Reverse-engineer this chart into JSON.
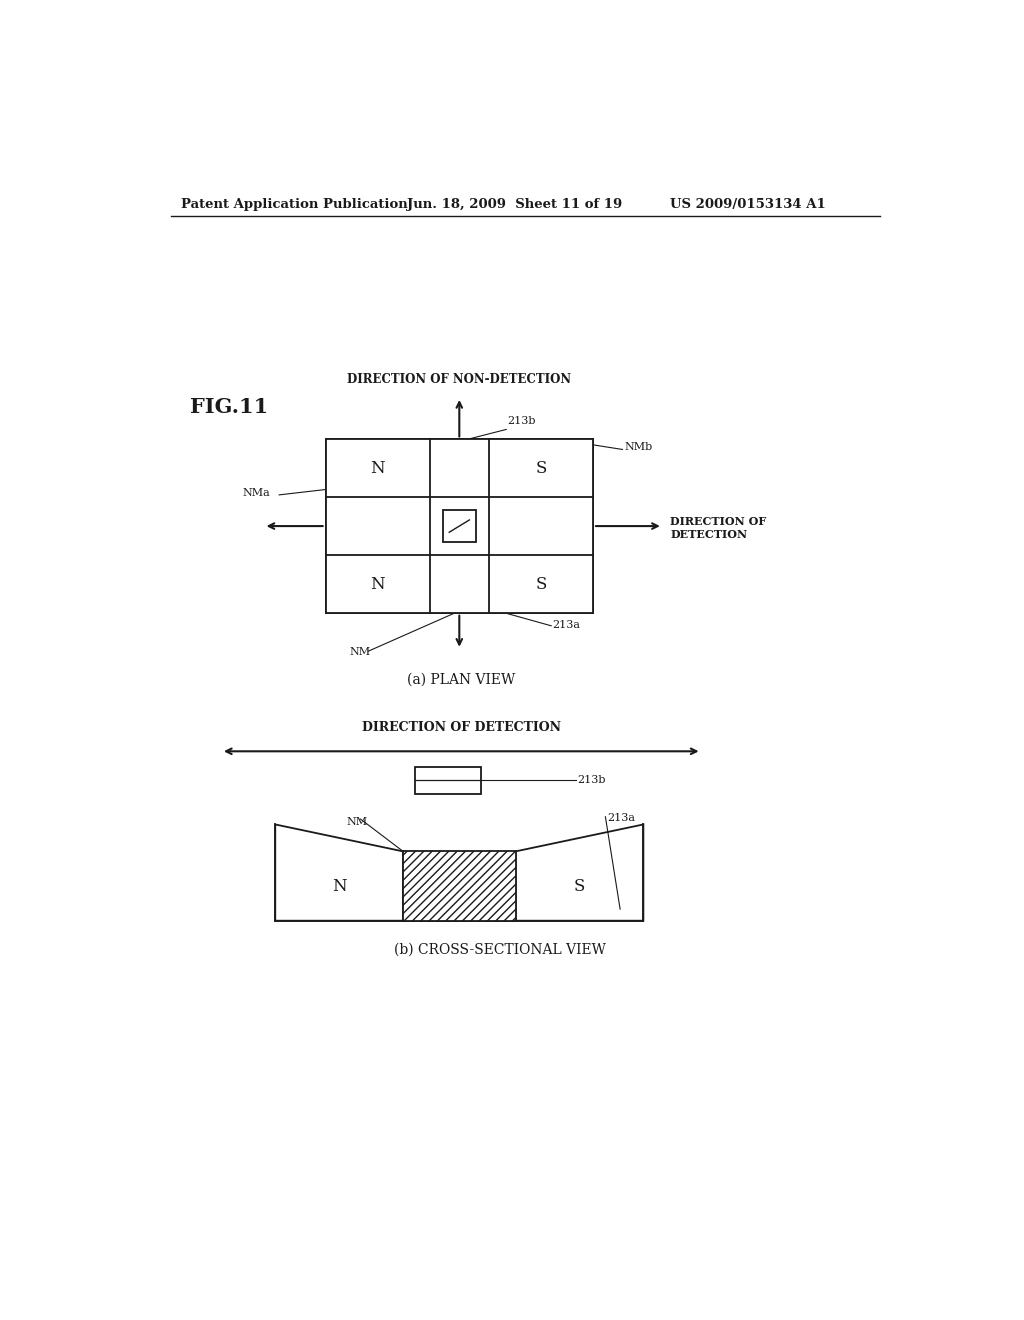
{
  "header_left": "Patent Application Publication",
  "header_mid": "Jun. 18, 2009  Sheet 11 of 19",
  "header_right": "US 2009/0153134 A1",
  "fig_label": "FIG.11",
  "plan_view_label": "(a) PLAN VIEW",
  "cross_section_label": "(b) CROSS-SECTIONAL VIEW",
  "direction_non_detection": "DIRECTION OF NON-DETECTION",
  "direction_detection_right": "DIRECTION OF\nDETECTION",
  "direction_detection_b": "DIRECTION OF DETECTION",
  "background_color": "#ffffff",
  "line_color": "#1a1a1a",
  "hatch_pattern": "////",
  "label_213b_plan": "213b",
  "label_213a_plan": "213a",
  "label_NMb": "NMb",
  "label_NMa": "NMa",
  "label_NM_plan": "NM",
  "label_213b_cs": "213b",
  "label_213a_cs": "213a",
  "label_NM_cs": "NM"
}
